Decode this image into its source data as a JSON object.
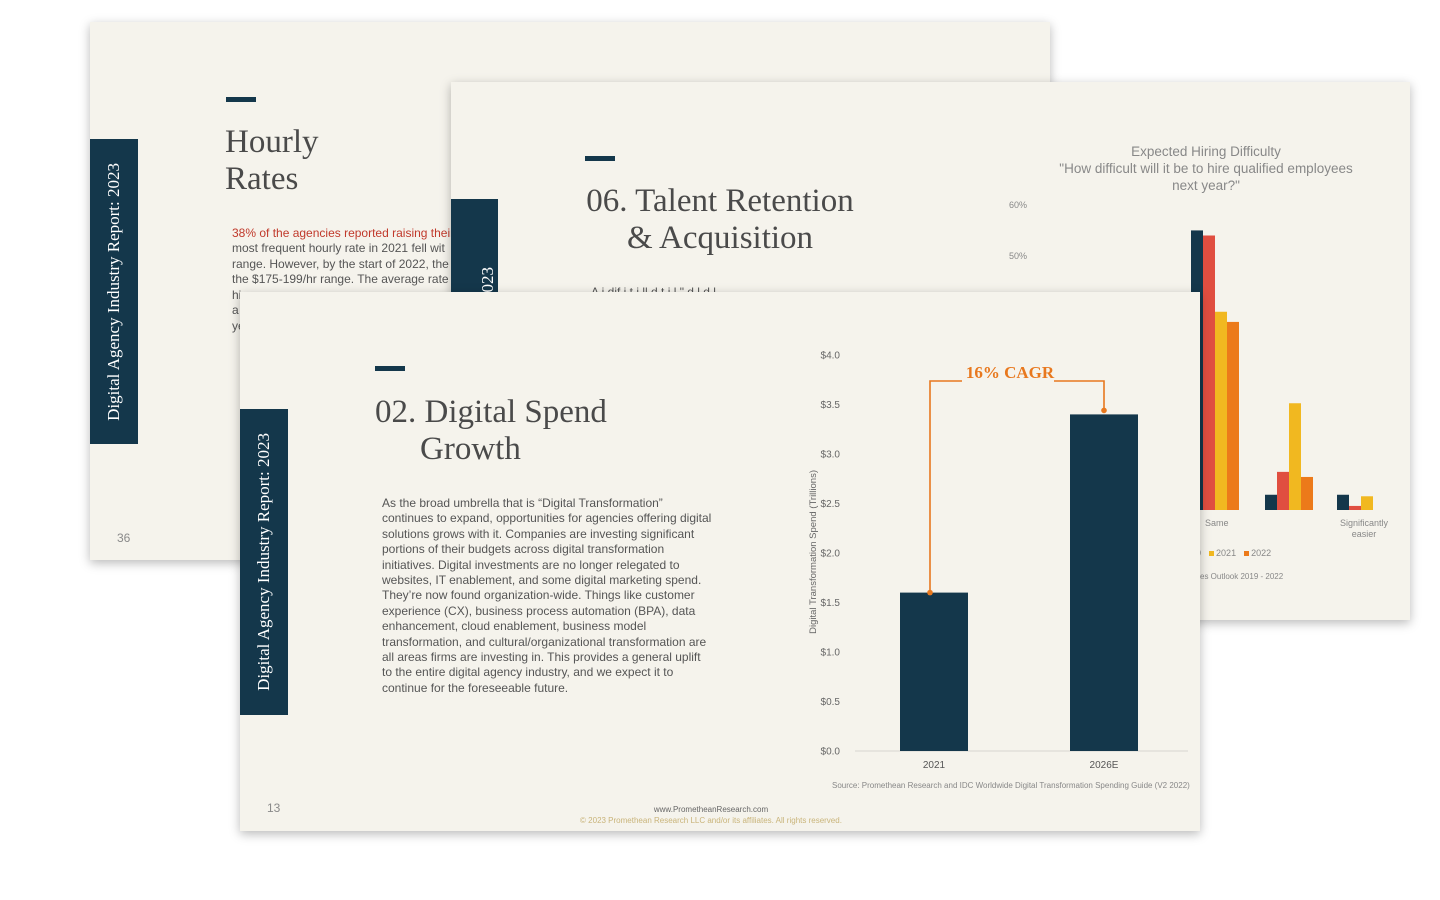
{
  "slide_hourly": {
    "sidebar": "Digital Agency Industry Report: 2023",
    "title_line1": "Hourly",
    "title_line2": "Rates",
    "highlight": "38% of the agencies reported raising their",
    "lines": [
      "most frequent hourly rate in 2021 fell wit",
      "range. However, by the start of 2022, the",
      "the $175-199/hr range. The average rate",
      "hi",
      "a",
      "ye"
    ],
    "page_number": "36"
  },
  "slide_talent": {
    "sidebar": "Report: 2023",
    "title_line1": "06. Talent Retention",
    "title_line2": "& Acquisition",
    "body_fragment": "A     i  dif   i  t  i  ll  d       t  i    l   \"    d  l    d  l",
    "chart_title": [
      "Expected Hiring Difficulty",
      "\"How difficult will it be to hire qualified employees",
      "next year?\""
    ],
    "y_ticks": [
      "60%",
      "50%"
    ],
    "x_labels": [
      "Same",
      "Significantly",
      "easier"
    ],
    "legend": [
      "0",
      "2021",
      "2022"
    ],
    "source": "ces Outlook 2019 - 2022"
  },
  "slide_digital": {
    "sidebar": "Digital Agency Industry Report: 2023",
    "title_line1": "02. Digital Spend",
    "title_line2": "Growth",
    "body": "As the broad umbrella that is “Digital Transformation” continues to expand, opportunities for agencies offering digital solutions grows with it. Companies are investing significant portions of their budgets across digital transformation initiatives. Digital investments are no longer relegated to websites, IT enablement, and some digital marketing spend. They’re now found organization-wide. Things like customer experience (CX), business process automation (BPA), data enhancement, cloud enablement, business model transformation, and cultural/organizational transformation are all areas firms are investing in. This provides a general uplift to the entire digital agency industry, and we expect it to continue for the foreseeable future.",
    "page_number": "13",
    "footer_url": "www.PrometheanResearch.com",
    "footer_copy": "© 2023 Promethean Research LLC and/or its affiliates. All rights reserved.",
    "source": "Source: Promethean Research and IDC Worldwide Digital Transformation Spending Guide (V2 2022)"
  },
  "chart_data": [
    {
      "type": "bar",
      "title": "",
      "xlabel": "",
      "ylabel": "Digital Transformation Spend (Trillions)",
      "categories": [
        "2021",
        "2026E"
      ],
      "values": [
        1.6,
        3.4
      ],
      "ylim": [
        0,
        4.0
      ],
      "yticks": [
        "$0.0",
        "$0.5",
        "$1.0",
        "$1.5",
        "$2.0",
        "$2.5",
        "$3.0",
        "$3.5",
        "$4.0"
      ],
      "annotation": "16% CAGR",
      "grid": false,
      "colors": {
        "bar": "#14374b",
        "annotation": "#e8781e"
      }
    },
    {
      "type": "bar",
      "title": "Expected Hiring Difficulty",
      "subtitle": "\"How difficult will it be to hire qualified employees next year?\"",
      "categories": [
        "",
        "Same",
        "",
        "Significantly easier"
      ],
      "ylim": [
        0,
        0.6
      ],
      "visible_ticks": [
        "60%",
        "50%"
      ],
      "series": [
        {
          "name": "",
          "values": [
            null,
            0.55,
            0.03,
            0.03
          ]
        },
        {
          "name": "",
          "values": [
            null,
            0.54,
            0.075,
            0.008
          ]
        },
        {
          "name": "2021",
          "values": [
            null,
            0.39,
            0.21,
            0.027
          ]
        },
        {
          "name": "2022",
          "values": [
            null,
            0.37,
            0.065,
            null
          ]
        }
      ],
      "colors": [
        "#14374b",
        "#e04e40",
        "#f1b820",
        "#ec7a1a"
      ]
    }
  ]
}
